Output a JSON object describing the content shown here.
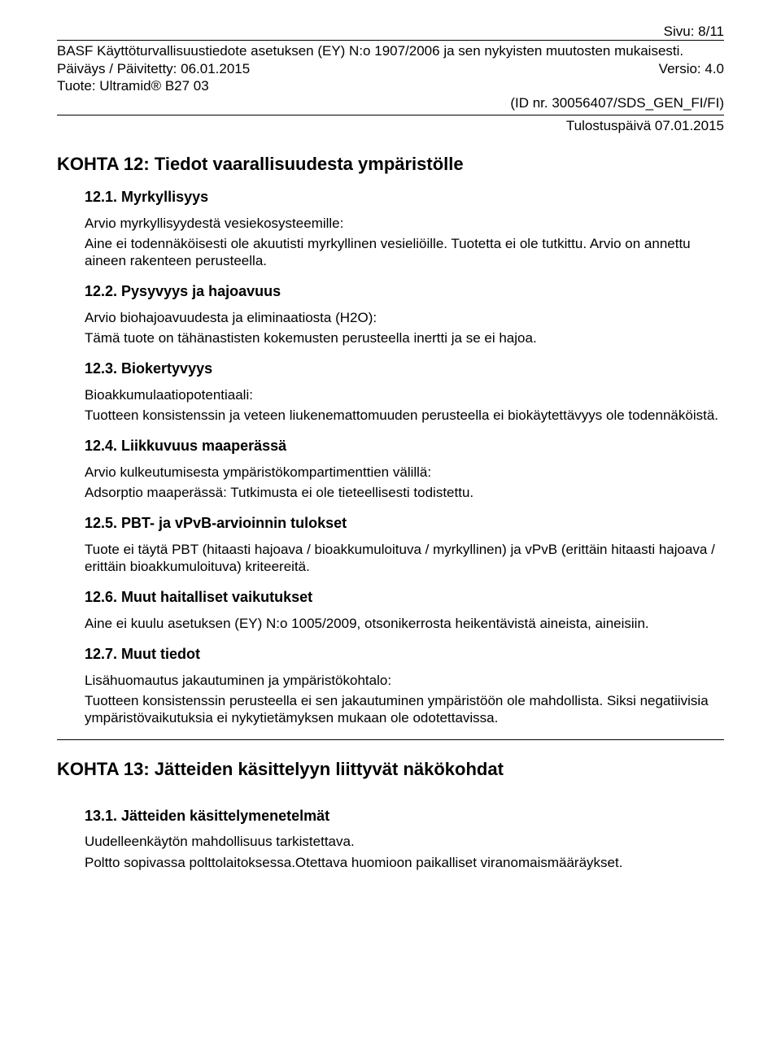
{
  "header": {
    "page_number": "Sivu: 8/11",
    "line1": "BASF Käyttöturvallisuustiedote asetuksen (EY) N:o 1907/2006 ja sen nykyisten muutosten mukaisesti.",
    "date_left": "Päiväys / Päivitetty: 06.01.2015",
    "version_right": "Versio: 4.0",
    "product": "Tuote: Ultramid® B27 03",
    "id_right": "(ID nr. 30056407/SDS_GEN_FI/FI)",
    "print_date": "Tulostuspäivä 07.01.2015"
  },
  "section12": {
    "title": "KOHTA 12: Tiedot vaarallisuudesta ympäristölle",
    "s1": {
      "heading": "12.1. Myrkyllisyys",
      "p1": "Arvio myrkyllisyydestä vesiekosysteemille:",
      "p2": "Aine ei todennäköisesti ole akuutisti myrkyllinen vesieliöille. Tuotetta ei ole tutkittu. Arvio on annettu aineen rakenteen perusteella."
    },
    "s2": {
      "heading": "12.2. Pysyvyys ja hajoavuus",
      "p1": "Arvio biohajoavuudesta ja eliminaatiosta (H2O):",
      "p2": "Tämä tuote on tähänastisten kokemusten perusteella inertti ja se ei hajoa."
    },
    "s3": {
      "heading": "12.3. Biokertyvyys",
      "p1": "Bioakkumulaatiopotentiaali:",
      "p2": "Tuotteen konsistenssin ja veteen liukenemattomuuden perusteella ei biokäytettävyys ole todennäköistä."
    },
    "s4": {
      "heading": "12.4. Liikkuvuus maaperässä",
      "p1": "Arvio kulkeutumisesta ympäristökompartimenttien välillä:",
      "p2": "Adsorptio maaperässä: Tutkimusta ei ole tieteellisesti todistettu."
    },
    "s5": {
      "heading": "12.5. PBT- ja vPvB-arvioinnin tulokset",
      "p1": "Tuote ei täytä PBT (hitaasti hajoava / bioakkumuloituva / myrkyllinen) ja vPvB (erittäin hitaasti hajoava / erittäin bioakkumuloituva) kriteereitä."
    },
    "s6": {
      "heading": "12.6. Muut haitalliset vaikutukset",
      "p1": "Aine ei kuulu asetuksen (EY) N:o 1005/2009, otsonikerrosta heikentävistä aineista, aineisiin."
    },
    "s7": {
      "heading": "12.7. Muut tiedot",
      "p1": "Lisähuomautus jakautuminen ja ympäristökohtalo:",
      "p2": "Tuotteen konsistenssin perusteella ei sen jakautuminen ympäristöön ole mahdollista. Siksi negatiivisia ympäristövaikutuksia ei nykytietämyksen mukaan ole odotettavissa."
    }
  },
  "section13": {
    "title": "KOHTA 13: Jätteiden käsittelyyn liittyvät näkökohdat",
    "s1": {
      "heading": "13.1. Jätteiden käsittelymenetelmät",
      "p1": "Uudelleenkäytön mahdollisuus tarkistettava.",
      "p2": "Poltto sopivassa polttolaitoksessa.Otettava huomioon paikalliset viranomaismääräykset."
    }
  }
}
